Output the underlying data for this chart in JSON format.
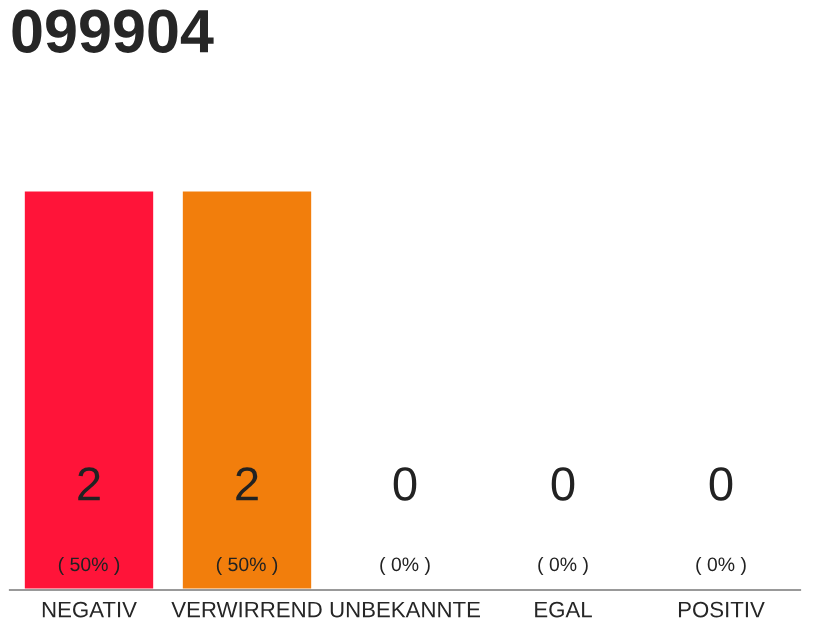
{
  "chart_data": {
    "type": "bar",
    "title": "099904",
    "categories": [
      "NEGATIV",
      "VERWIRREND",
      "UNBEKANNTE",
      "EGAL",
      "POSITIV"
    ],
    "values": [
      2,
      2,
      0,
      0,
      0
    ],
    "colors": [
      "#ff1439",
      "#f27e0c",
      null,
      null,
      null
    ],
    "data_labels": true,
    "annotations": [
      "( 50% )",
      "( 50% )",
      "( 0% )",
      "( 0% )",
      "( 0% )"
    ],
    "grid": false,
    "legend": false
  }
}
